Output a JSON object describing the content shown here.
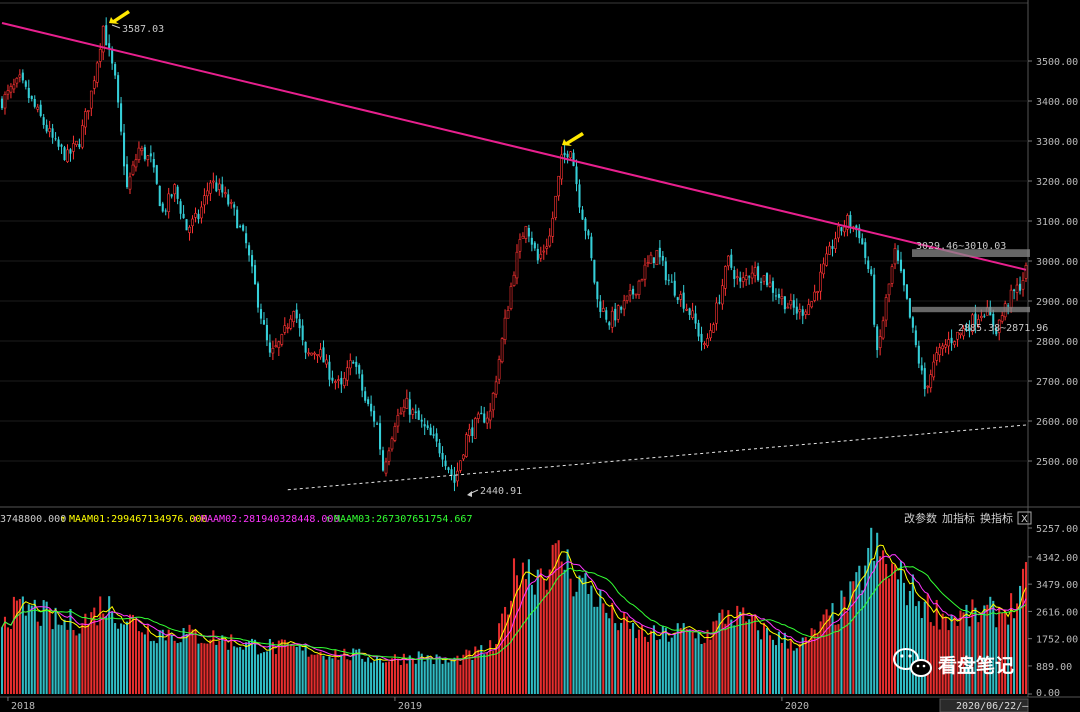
{
  "chart_data": {
    "type": "candlestick",
    "title": "",
    "price_axis": {
      "ticks": [
        "3500.00",
        "3400.00",
        "3300.00",
        "3200.00",
        "3100.00",
        "3000.00",
        "2900.00",
        "2800.00",
        "2700.00",
        "2600.00",
        "2500.00"
      ],
      "ylim": [
        2415,
        3615
      ]
    },
    "volume_axis": {
      "ticks": [
        "5257.00",
        "4342.00",
        "3479.00",
        "2616.00",
        "1752.00",
        "889.00",
        "0.00"
      ],
      "ylim": [
        0,
        5257
      ]
    },
    "x_axis": {
      "labels": [
        "2018",
        "2019",
        "2020"
      ],
      "label_index": [
        2,
        132,
        262
      ],
      "count": 345
    },
    "annotations": {
      "high_2018": "3587.03",
      "low_2019": "2440.91",
      "resistance_zone": "3029.46~3010.03",
      "support_zone": "2885.38~2871.96"
    },
    "price_anchors": [
      [
        0,
        3400
      ],
      [
        6,
        3450
      ],
      [
        12,
        3370
      ],
      [
        18,
        3290
      ],
      [
        22,
        3260
      ],
      [
        26,
        3300
      ],
      [
        30,
        3420
      ],
      [
        34,
        3587
      ],
      [
        38,
        3450
      ],
      [
        42,
        3180
      ],
      [
        46,
        3280
      ],
      [
        50,
        3250
      ],
      [
        54,
        3120
      ],
      [
        58,
        3180
      ],
      [
        62,
        3080
      ],
      [
        66,
        3110
      ],
      [
        70,
        3200
      ],
      [
        74,
        3170
      ],
      [
        78,
        3120
      ],
      [
        82,
        3040
      ],
      [
        86,
        2900
      ],
      [
        90,
        2760
      ],
      [
        94,
        2800
      ],
      [
        98,
        2890
      ],
      [
        102,
        2760
      ],
      [
        106,
        2780
      ],
      [
        110,
        2720
      ],
      [
        114,
        2680
      ],
      [
        118,
        2760
      ],
      [
        122,
        2650
      ],
      [
        126,
        2590
      ],
      [
        128,
        2480
      ],
      [
        132,
        2600
      ],
      [
        136,
        2640
      ],
      [
        140,
        2600
      ],
      [
        144,
        2560
      ],
      [
        148,
        2520
      ],
      [
        152,
        2448
      ],
      [
        156,
        2560
      ],
      [
        160,
        2600
      ],
      [
        164,
        2620
      ],
      [
        168,
        2800
      ],
      [
        172,
        2980
      ],
      [
        176,
        3100
      ],
      [
        180,
        3000
      ],
      [
        184,
        3060
      ],
      [
        188,
        3250
      ],
      [
        191,
        3288
      ],
      [
        194,
        3150
      ],
      [
        197,
        3050
      ],
      [
        200,
        2900
      ],
      [
        204,
        2850
      ],
      [
        208,
        2880
      ],
      [
        212,
        2920
      ],
      [
        216,
        2980
      ],
      [
        220,
        3020
      ],
      [
        224,
        2950
      ],
      [
        228,
        2910
      ],
      [
        232,
        2860
      ],
      [
        236,
        2780
      ],
      [
        240,
        2880
      ],
      [
        244,
        3000
      ],
      [
        248,
        2940
      ],
      [
        252,
        2980
      ],
      [
        256,
        2960
      ],
      [
        260,
        2920
      ],
      [
        264,
        2890
      ],
      [
        268,
        2870
      ],
      [
        272,
        2900
      ],
      [
        276,
        2980
      ],
      [
        280,
        3060
      ],
      [
        284,
        3100
      ],
      [
        288,
        3070
      ],
      [
        292,
        2950
      ],
      [
        294,
        2760
      ],
      [
        297,
        2900
      ],
      [
        300,
        3020
      ],
      [
        303,
        2930
      ],
      [
        306,
        2820
      ],
      [
        310,
        2680
      ],
      [
        314,
        2760
      ],
      [
        318,
        2800
      ],
      [
        322,
        2820
      ],
      [
        326,
        2850
      ],
      [
        330,
        2880
      ],
      [
        334,
        2830
      ],
      [
        338,
        2900
      ],
      [
        342,
        2940
      ],
      [
        344,
        2975
      ]
    ],
    "volume_anchors": [
      [
        0,
        2500
      ],
      [
        10,
        2700
      ],
      [
        20,
        2200
      ],
      [
        30,
        2400
      ],
      [
        34,
        2900
      ],
      [
        38,
        2600
      ],
      [
        50,
        2000
      ],
      [
        60,
        1900
      ],
      [
        70,
        1800
      ],
      [
        80,
        1600
      ],
      [
        90,
        1500
      ],
      [
        100,
        1400
      ],
      [
        110,
        1300
      ],
      [
        120,
        1200
      ],
      [
        130,
        1100
      ],
      [
        140,
        1200
      ],
      [
        150,
        1000
      ],
      [
        160,
        1300
      ],
      [
        166,
        1500
      ],
      [
        170,
        3000
      ],
      [
        174,
        4300
      ],
      [
        178,
        3800
      ],
      [
        184,
        4100
      ],
      [
        188,
        4400
      ],
      [
        192,
        3700
      ],
      [
        198,
        3300
      ],
      [
        204,
        2500
      ],
      [
        212,
        2000
      ],
      [
        220,
        1800
      ],
      [
        228,
        2000
      ],
      [
        236,
        1800
      ],
      [
        244,
        2600
      ],
      [
        252,
        2200
      ],
      [
        262,
        1700
      ],
      [
        270,
        1600
      ],
      [
        278,
        2400
      ],
      [
        286,
        3100
      ],
      [
        292,
        4600
      ],
      [
        298,
        4000
      ],
      [
        304,
        3400
      ],
      [
        310,
        2800
      ],
      [
        318,
        2400
      ],
      [
        326,
        2500
      ],
      [
        334,
        2600
      ],
      [
        340,
        2800
      ],
      [
        344,
        3500
      ]
    ],
    "trendlines": [
      {
        "name": "resistance",
        "from": [
          0,
          3595
        ],
        "to": [
          344,
          2978
        ],
        "color": "#e8208e"
      },
      {
        "name": "support",
        "from": [
          96,
          2428
        ],
        "to": [
          344,
          2590
        ],
        "color": "#e6e6e6"
      }
    ]
  },
  "indicator": {
    "prefix": "3748800.000",
    "maam1": "MAAM01:299467134976.000",
    "maam2": "MAAM02:281940328448.000",
    "maam3": "MAAM03:267307651754.667",
    "colors": {
      "maam1": "#ffff00",
      "maam2": "#ff36ff",
      "maam3": "#33ff33"
    }
  },
  "controls": {
    "change_params": "改参数",
    "add_indicator": "加指标",
    "swap_indicator": "换指标",
    "close": "X"
  },
  "footer": {
    "date": "2020/06/22/—"
  },
  "watermark": {
    "text": "看盘笔记"
  },
  "colors": {
    "up": "#ff3333",
    "down": "#35cfd8",
    "background": "#000000",
    "grid": "#3a3a3a"
  }
}
